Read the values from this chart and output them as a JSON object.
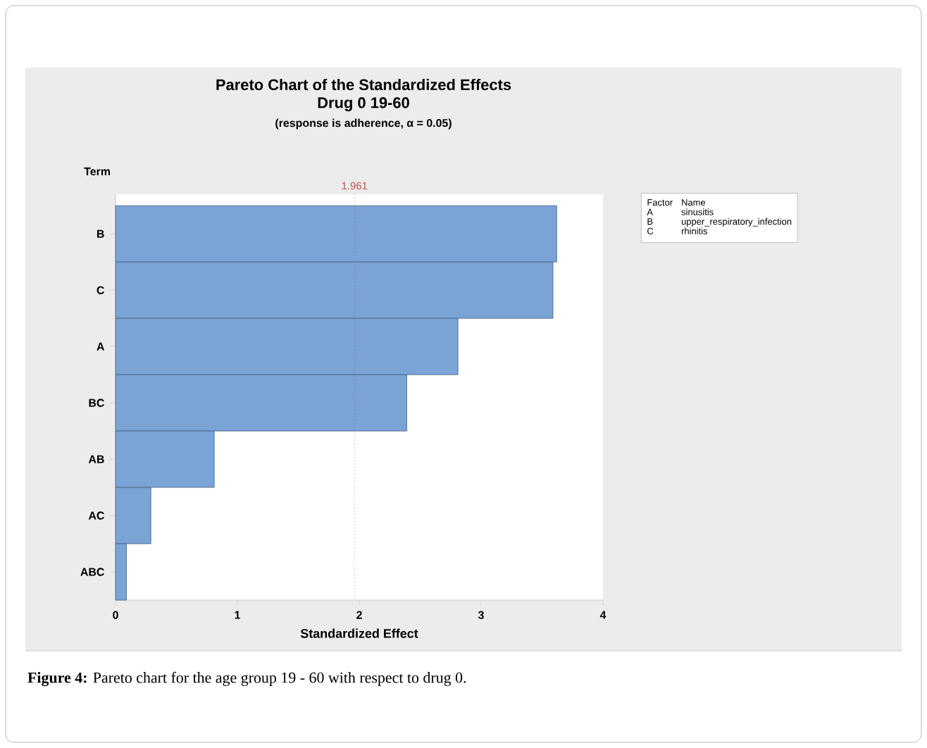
{
  "chart_data": {
    "type": "bar",
    "orientation": "horizontal",
    "title": "Pareto Chart of the Standardized Effects",
    "subtitle": "Drug 0 19-60",
    "xlabel": "Standardized Effect",
    "ylabel": "Term",
    "categories": [
      "B",
      "C",
      "A",
      "BC",
      "AB",
      "AC",
      "ABC"
    ],
    "values": [
      3.62,
      3.59,
      2.81,
      2.39,
      0.81,
      0.29,
      0.09
    ],
    "color": "#7aa3d6",
    "xlim": [
      0,
      4
    ],
    "xticks": [
      0,
      1,
      2,
      3,
      4
    ],
    "ref_lines": [
      {
        "axis": "x",
        "value": 1.961,
        "label": "1.961",
        "color": "#c0504d",
        "line_style": "dotted"
      }
    ],
    "grid": false,
    "annotations": [
      "(response is adherence, α = 0.05)",
      "Factor",
      "Name",
      "A",
      "sinusitis",
      "B",
      "upper_respiratory_infection",
      "C",
      "rhinitis",
      "**Figure 4:** Pareto chart for the age group 19 - 60 with respect to drug 0."
    ]
  }
}
